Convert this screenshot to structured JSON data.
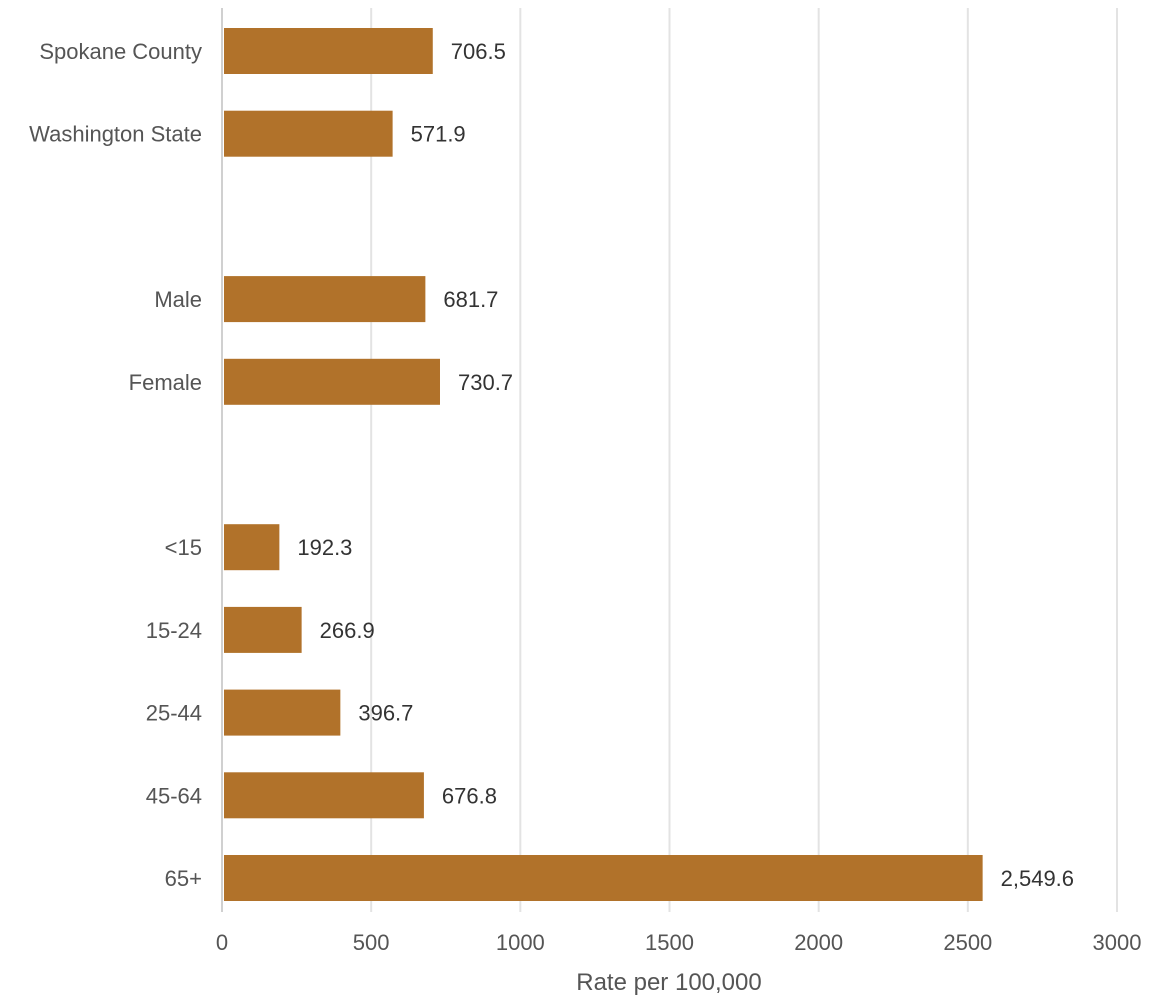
{
  "chart_data": {
    "type": "bar",
    "orientation": "horizontal",
    "groups": [
      {
        "rows": [
          {
            "label": "Spokane County",
            "value": 706.5,
            "value_label": "706.5"
          },
          {
            "label": "Washington State",
            "value": 571.9,
            "value_label": "571.9"
          }
        ]
      },
      {
        "rows": [
          {
            "label": "Male",
            "value": 681.7,
            "value_label": "681.7"
          },
          {
            "label": "Female",
            "value": 730.7,
            "value_label": "730.7"
          }
        ]
      },
      {
        "rows": [
          {
            "label": "<15",
            "value": 192.3,
            "value_label": "192.3"
          },
          {
            "label": "15-24",
            "value": 266.9,
            "value_label": "266.9"
          },
          {
            "label": "25-44",
            "value": 396.7,
            "value_label": "396.7"
          },
          {
            "label": "45-64",
            "value": 676.8,
            "value_label": "676.8"
          },
          {
            "label": "65+",
            "value": 2549.6,
            "value_label": "2,549.6"
          }
        ]
      }
    ],
    "xlabel": "Rate per 100,000",
    "xlim": [
      0,
      3000
    ],
    "xticks": [
      "0",
      "500",
      "1000",
      "1500",
      "2000",
      "2500",
      "3000"
    ],
    "bar_color": "#b1722a",
    "grid": true,
    "legend": "none"
  }
}
